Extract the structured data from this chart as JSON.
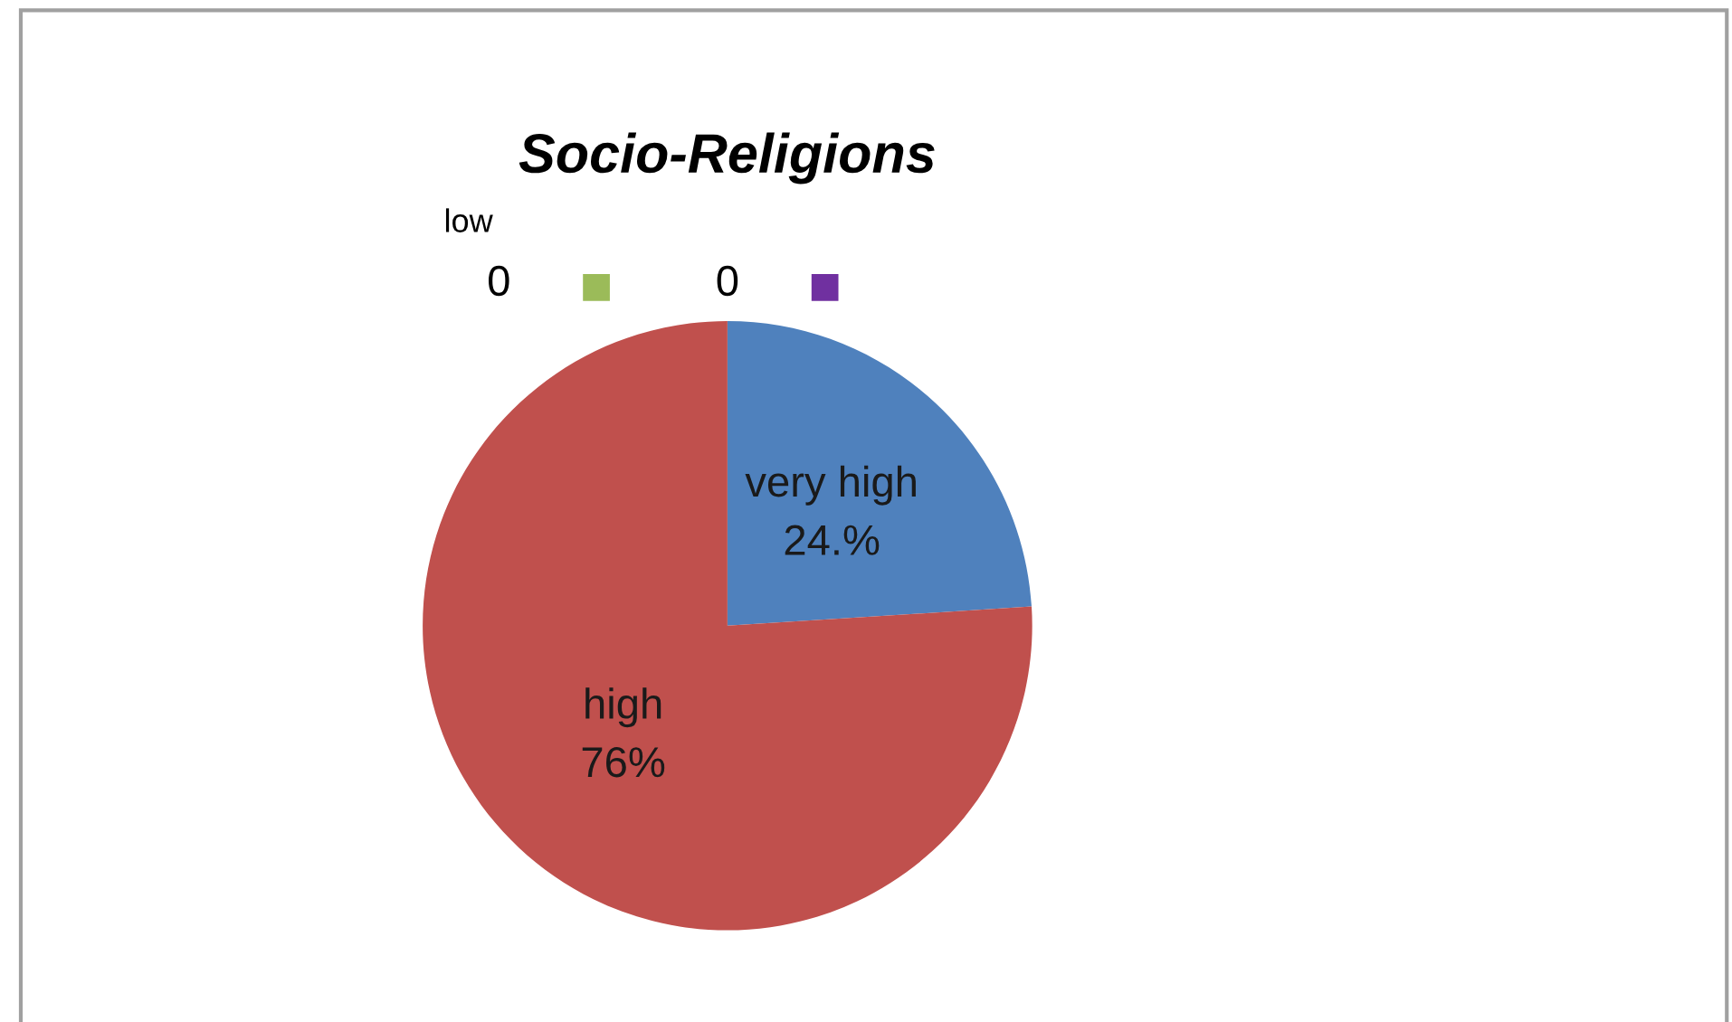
{
  "chart_data": {
    "type": "pie",
    "title": "Socio-Religions",
    "categories": [
      "very high",
      "high",
      "low",
      null
    ],
    "values": [
      24,
      76,
      0,
      0
    ],
    "value_labels": [
      "24.%",
      "76%",
      "0",
      "0"
    ],
    "colors": [
      "#4f81bd",
      "#c0504d",
      "#9bbb59",
      "#7030a0"
    ]
  }
}
